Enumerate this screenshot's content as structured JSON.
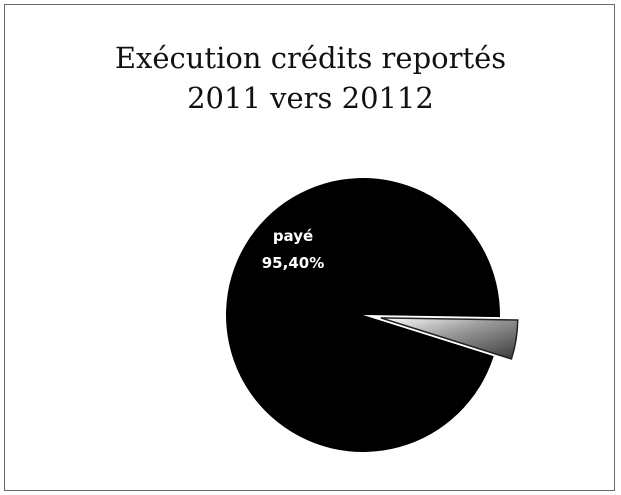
{
  "chart_data": {
    "type": "pie",
    "title_line1": "Exécution crédits reportés",
    "title_line2": "2011 vers 20112",
    "slices": [
      {
        "label": "payé",
        "value_label": "95,40%",
        "value": 95.4,
        "color": "#000000"
      },
      {
        "label": "",
        "value_label": "",
        "value": 4.6,
        "color": "#b8b8b8"
      }
    ]
  }
}
